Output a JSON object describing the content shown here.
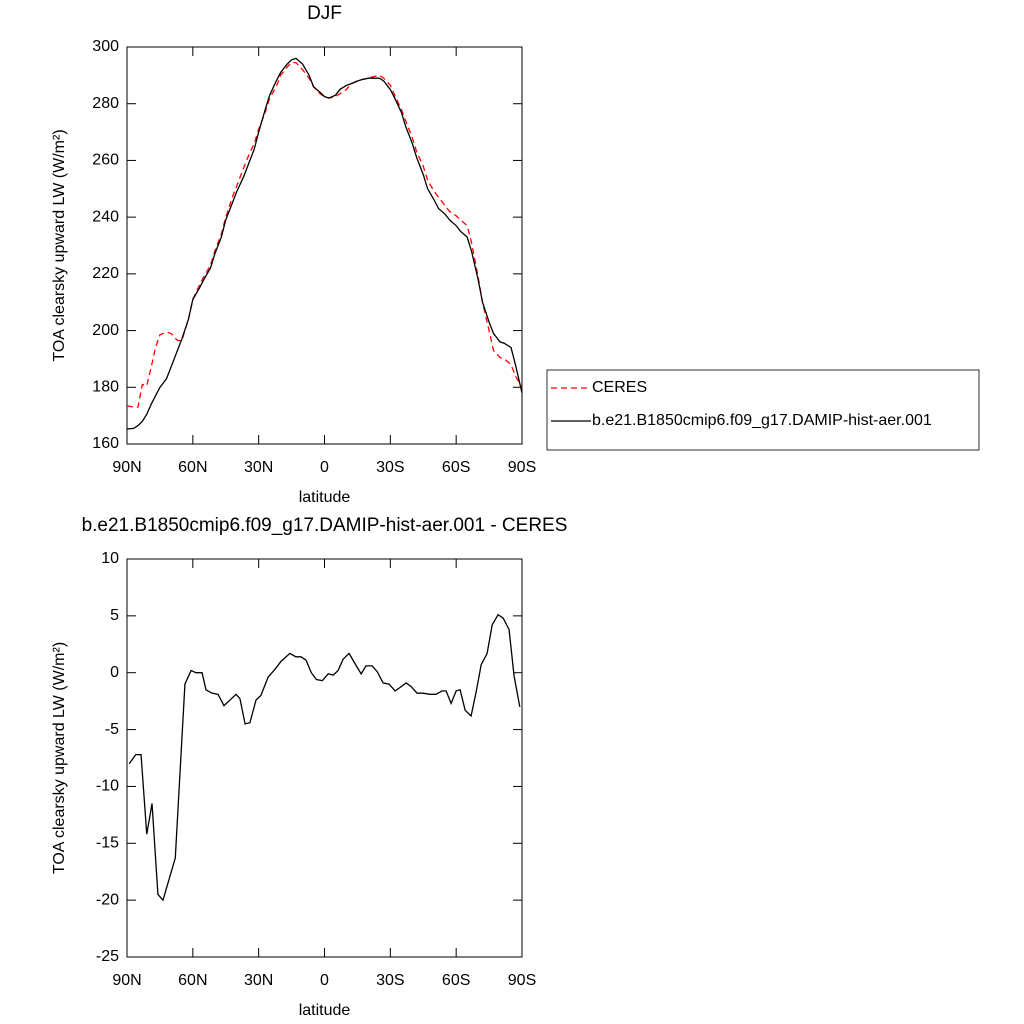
{
  "chart_data": [
    {
      "type": "line",
      "title": "DJF",
      "x_label": "latitude",
      "y_label": "TOA clearsky upward LW (W/m²)",
      "x": [
        90,
        87,
        85,
        83,
        81,
        79,
        77,
        75,
        72,
        70,
        67,
        65,
        62,
        60,
        57,
        55,
        52,
        50,
        47,
        45,
        42,
        40,
        37,
        35,
        32,
        30,
        27,
        25,
        22,
        20,
        17,
        15,
        13,
        10,
        7,
        5,
        2,
        0,
        -2,
        -5,
        -7,
        -10,
        -12,
        -15,
        -17,
        -20,
        -22,
        -25,
        -27,
        -30,
        -32,
        -35,
        -37,
        -40,
        -42,
        -45,
        -47,
        -50,
        -52,
        -55,
        -57,
        -60,
        -62,
        -65,
        -67,
        -70,
        -72,
        -75,
        -77,
        -80,
        -82,
        -85,
        -87,
        -90
      ],
      "series": [
        {
          "name": "CERES",
          "color": "#ff0000",
          "dash": "6,4",
          "values": [
            173.5,
            173,
            173,
            181,
            180.5,
            187,
            194,
            198.5,
            199.5,
            199,
            196.5,
            196.5,
            204,
            211,
            216,
            219,
            223,
            228,
            234,
            240,
            247,
            251,
            257,
            261,
            266,
            271,
            277,
            282,
            286,
            290,
            293,
            294.5,
            294.5,
            292,
            289,
            286,
            283.5,
            282.5,
            282,
            282.5,
            283.5,
            285,
            287,
            288,
            288.5,
            289,
            289.5,
            290,
            289,
            286.5,
            283,
            278,
            274,
            268,
            263,
            258,
            253,
            249,
            247,
            244,
            242,
            240.5,
            239,
            237,
            231,
            219,
            210,
            200,
            193,
            190.5,
            190,
            188,
            184,
            180
          ]
        },
        {
          "name": "b.e21.B1850cmip6.f09_g17.DAMIP-hist-aer.001",
          "color": "#000000",
          "values": [
            165.3,
            165.5,
            166.5,
            168,
            170.5,
            174,
            177,
            180,
            183,
            187,
            193,
            197,
            204,
            211,
            215,
            218,
            222,
            227,
            233,
            239,
            245,
            249,
            254,
            258,
            264,
            270,
            278,
            283,
            288,
            291,
            294,
            295.5,
            296,
            294,
            290,
            286,
            284,
            282.5,
            282,
            283,
            285,
            286.5,
            287,
            288,
            288.5,
            289,
            289,
            289,
            288,
            285,
            282,
            277,
            272,
            266,
            261,
            255,
            250,
            246,
            243,
            241,
            239,
            237,
            235,
            233,
            228,
            218,
            210,
            203,
            199,
            196,
            195.5,
            194,
            188,
            178
          ]
        }
      ],
      "xlim": [
        90,
        -90
      ],
      "xticks": [
        {
          "value": 90,
          "label": "90N"
        },
        {
          "value": 60,
          "label": "60N"
        },
        {
          "value": 30,
          "label": "30N"
        },
        0,
        {
          "value": -30,
          "label": "30S"
        },
        {
          "value": -60,
          "label": "60S"
        },
        {
          "value": -90,
          "label": "90S"
        }
      ],
      "ylim": [
        160,
        300
      ],
      "yticks": [
        160,
        180,
        200,
        220,
        240,
        260,
        280,
        300
      ],
      "legend": "right"
    },
    {
      "type": "line",
      "title": "b.e21.B1850cmip6.f09_g17.DAMIP-hist-aer.001 - CERES",
      "x_label": "latitude",
      "y_label": "TOA clearsky upward LW (W/m²)",
      "x": [
        89,
        86,
        83.6,
        81,
        78.6,
        75.9,
        73.6,
        68,
        63.6,
        60.8,
        58.6,
        55.8,
        54,
        51.3,
        48.5,
        45.8,
        40.3,
        38.5,
        36.2,
        34,
        31.2,
        29,
        25.7,
        22.6,
        19.8,
        15.8,
        13,
        10.7,
        8.4,
        6,
        3.7,
        1,
        -1.7,
        -4,
        -6.2,
        -8.5,
        -11.2,
        -13.9,
        -16.7,
        -18.9,
        -21.7,
        -24,
        -26.7,
        -29.4,
        -32.2,
        -34.4,
        -37.2,
        -39.4,
        -42.2,
        -44.9,
        -48.1,
        -50.8,
        -53.6,
        -55.4,
        -57.7,
        -60,
        -61.8,
        -64.1,
        -66.8,
        -69.1,
        -71.4,
        -74.1,
        -76.4,
        -79.1,
        -81.4,
        -84.1,
        -86.4,
        -89
      ],
      "values": [
        -8,
        -7.2,
        -7.2,
        -14.2,
        -11.5,
        -19.5,
        -20,
        -16.3,
        -1,
        0.2,
        0,
        0,
        -1.5,
        -1.8,
        -1.9,
        -2.9,
        -1.9,
        -2.3,
        -4.5,
        -4.4,
        -2.4,
        -2,
        -0.4,
        0.3,
        1,
        1.7,
        1.4,
        1.4,
        1.1,
        0,
        -0.6,
        -0.7,
        -0.1,
        -0.2,
        0.2,
        1.2,
        1.7,
        0.8,
        -0.1,
        0.6,
        0.6,
        0.1,
        -0.9,
        -1,
        -1.6,
        -1.3,
        -0.9,
        -1.2,
        -1.8,
        -1.8,
        -1.9,
        -1.9,
        -1.6,
        -1.6,
        -2.7,
        -1.6,
        -1.5,
        -3.3,
        -3.8,
        -1.7,
        0.7,
        1.7,
        4.2,
        5.1,
        4.8,
        3.8,
        -0.3,
        -3
      ],
      "color": "#000000",
      "xlim": [
        90,
        -90
      ],
      "xticks": [
        {
          "value": 90,
          "label": "90N"
        },
        {
          "value": 60,
          "label": "60N"
        },
        {
          "value": 30,
          "label": "30N"
        },
        0,
        {
          "value": -30,
          "label": "30S"
        },
        {
          "value": -60,
          "label": "60S"
        },
        {
          "value": -90,
          "label": "90S"
        }
      ],
      "ylim": [
        -25,
        10
      ],
      "yticks": [
        -25,
        -20,
        -15,
        -10,
        -5,
        0,
        5,
        10
      ]
    }
  ]
}
